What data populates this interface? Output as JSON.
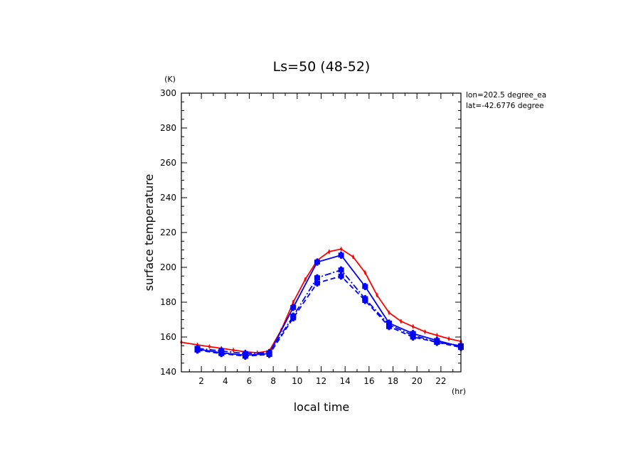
{
  "chart_data": {
    "type": "line",
    "title": "Ls=50 (48-52)",
    "xlabel": "local time",
    "ylabel": "surface temperature",
    "xunit": "(hr)",
    "yunit": "(K)",
    "xlim": [
      0.33,
      23.67
    ],
    "ylim": [
      140,
      300
    ],
    "xticks": [
      2,
      4,
      6,
      8,
      10,
      12,
      14,
      16,
      18,
      20,
      22
    ],
    "yticks": [
      140,
      160,
      180,
      200,
      220,
      240,
      260,
      280,
      300
    ],
    "annotations": [
      "lon=202.5 degree_ea",
      "lat=-42.6776 degree"
    ],
    "colors": {
      "red": "#ff0000",
      "blue": "#0000ff"
    },
    "series": [
      {
        "color": "#ff0000",
        "style": "solid",
        "x": [
          0.33,
          1.67,
          2.67,
          3.67,
          4.67,
          5.67,
          6.67,
          7.67,
          8.67,
          9.67,
          10.67,
          11.67,
          12.67,
          13.67,
          14.67,
          15.67,
          16.67,
          17.67,
          18.67,
          19.67,
          20.67,
          21.67,
          22.67,
          23.67
        ],
        "y": [
          157,
          155.5,
          154.5,
          153.5,
          152.5,
          151.5,
          151,
          152,
          164,
          180,
          193,
          204,
          209,
          210.5,
          206,
          197,
          184,
          174,
          169,
          166,
          163,
          161,
          159,
          157.5
        ]
      },
      {
        "color": "#0000ff",
        "style": "solid",
        "x": [
          1.67,
          3.67,
          5.67,
          7.67,
          9.67,
          11.67,
          13.67,
          15.67,
          17.67,
          19.67,
          21.67,
          23.67
        ],
        "y": [
          153,
          151,
          149.5,
          150.5,
          177,
          203,
          207,
          189,
          168,
          162,
          158,
          154.5
        ]
      },
      {
        "color": "#0000ff",
        "style": "dashdot",
        "x": [
          1.67,
          3.67,
          5.67,
          7.67,
          9.67,
          11.67,
          13.67,
          15.67,
          17.67,
          19.67,
          21.67,
          23.67
        ],
        "y": [
          153.5,
          152,
          150.5,
          151,
          172,
          194,
          198.5,
          182,
          167,
          161,
          157,
          155
        ]
      },
      {
        "color": "#0000ff",
        "style": "dashed",
        "x": [
          1.67,
          3.67,
          5.67,
          7.67,
          9.67,
          11.67,
          13.67,
          15.67,
          17.67,
          19.67,
          21.67,
          23.67
        ],
        "y": [
          152.5,
          150.5,
          149,
          150,
          171,
          191,
          195,
          181,
          166,
          160,
          157,
          154
        ]
      }
    ]
  }
}
